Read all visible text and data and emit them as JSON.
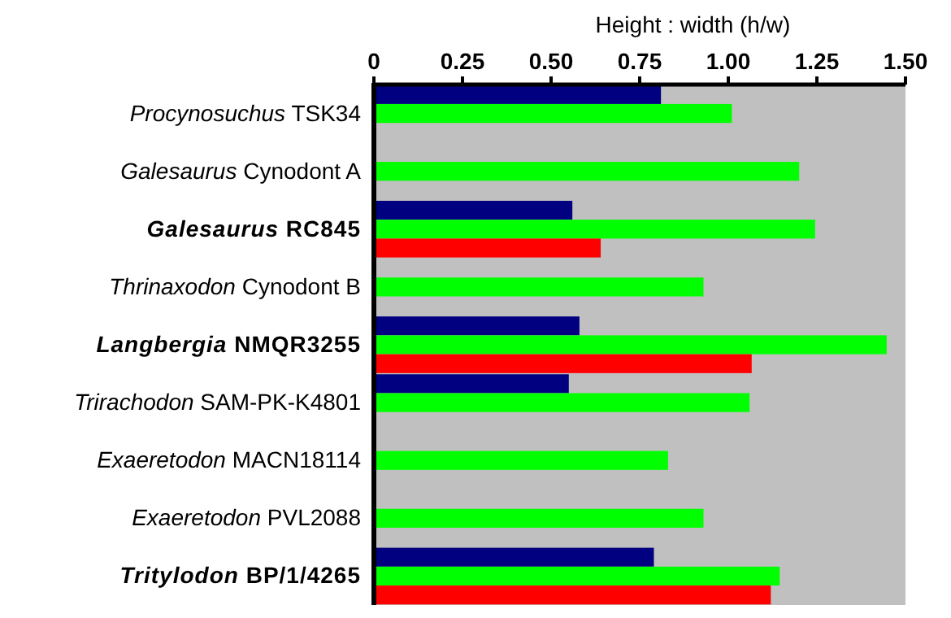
{
  "chart_data": {
    "type": "bar",
    "orientation": "horizontal",
    "xlabel": "Height : width (h/w)",
    "categories": [
      "Procynosuchus TSK34",
      "Galesaurus Cynodont A",
      "Galesaurus RC845",
      "Thrinaxodon Cynodont B",
      "Langbergia NMQR3255",
      "Trirachodon SAM-PK-K4801",
      "Exaeretodon MACN18114",
      "Exaeretodon PVL2088",
      "Tritylodon BP/1/4265"
    ],
    "series": [
      {
        "color": "#000080",
        "values": [
          0.81,
          null,
          0.56,
          null,
          0.58,
          0.55,
          null,
          null,
          0.79
        ]
      },
      {
        "color": "#00ff00",
        "values": [
          1.01,
          1.2,
          1.245,
          0.93,
          1.447,
          1.06,
          0.83,
          0.93,
          1.145
        ]
      },
      {
        "color": "#ff0000",
        "values": [
          null,
          null,
          0.64,
          null,
          1.066,
          null,
          null,
          null,
          1.12
        ]
      }
    ],
    "xlim": [
      0,
      1.5
    ],
    "xticks": [
      0,
      {
        "value": 0.25,
        "label": "0.25"
      },
      {
        "value": 0.5,
        "label": "0.50"
      },
      {
        "value": 0.75,
        "label": "0.75"
      },
      {
        "value": 1,
        "label": "1.00"
      },
      {
        "value": 1.25,
        "label": "1.25"
      },
      {
        "value": 1.5,
        "label": "1.50"
      }
    ],
    "grid": false
  }
}
